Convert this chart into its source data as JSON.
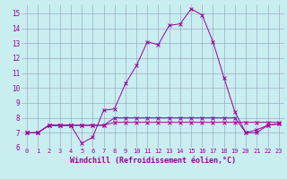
{
  "xlabel": "Windchill (Refroidissement éolien,°C)",
  "ylabel": "",
  "bg_color": "#c8eef0",
  "line_color": "#990099",
  "grid_color": "#9999bb",
  "xlim": [
    -0.5,
    23.5
  ],
  "ylim": [
    6.0,
    15.6
  ],
  "xticks": [
    0,
    1,
    2,
    3,
    4,
    5,
    6,
    7,
    8,
    9,
    10,
    11,
    12,
    13,
    14,
    15,
    16,
    17,
    18,
    19,
    20,
    21,
    22,
    23
  ],
  "yticks": [
    6,
    7,
    8,
    9,
    10,
    11,
    12,
    13,
    14,
    15
  ],
  "series": [
    [
      7.0,
      7.0,
      7.5,
      7.5,
      7.5,
      6.3,
      6.7,
      8.5,
      8.6,
      10.3,
      11.5,
      13.1,
      12.9,
      14.2,
      14.3,
      15.3,
      14.9,
      13.1,
      10.7,
      8.4,
      7.0,
      7.2,
      7.5,
      7.6
    ],
    [
      7.0,
      7.0,
      7.5,
      7.5,
      7.5,
      7.5,
      7.5,
      7.5,
      7.7,
      7.7,
      7.7,
      7.7,
      7.7,
      7.7,
      7.7,
      7.7,
      7.7,
      7.7,
      7.7,
      7.7,
      7.7,
      7.7,
      7.7,
      7.7
    ],
    [
      7.0,
      7.0,
      7.5,
      7.5,
      7.5,
      7.5,
      7.5,
      7.5,
      8.0,
      8.0,
      8.0,
      8.0,
      8.0,
      8.0,
      8.0,
      8.0,
      8.0,
      8.0,
      8.0,
      8.0,
      7.0,
      7.0,
      7.5,
      7.6
    ]
  ],
  "font_size_ticks": 5,
  "font_size_xlabel": 6
}
